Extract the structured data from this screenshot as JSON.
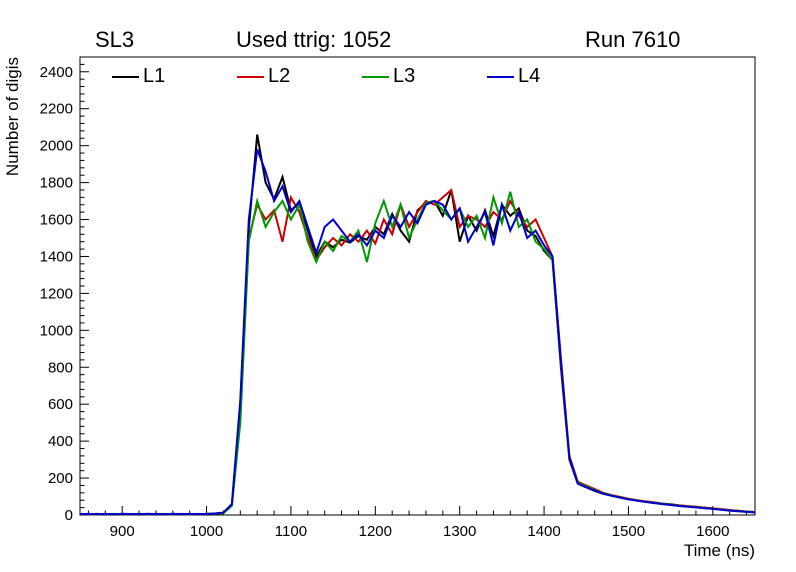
{
  "header": {
    "left": "SL3",
    "center": "Used ttrig: 1052",
    "right": "Run 7610"
  },
  "chart_data": {
    "type": "line",
    "title": "",
    "xlabel": "Time (ns)",
    "ylabel": "Number of digis",
    "xlim": [
      850,
      1650
    ],
    "ylim": [
      0,
      2480
    ],
    "xticks": [
      900,
      1000,
      1100,
      1200,
      1300,
      1400,
      1500,
      1600
    ],
    "yticks": [
      0,
      200,
      400,
      600,
      800,
      1000,
      1200,
      1400,
      1600,
      1800,
      2000,
      2200,
      2400
    ],
    "xmajor": 100,
    "xminor": 20,
    "ymajor": 200,
    "yminor": 40,
    "grid": false,
    "legend_position": "top-inside",
    "x": [
      850,
      860,
      870,
      880,
      890,
      900,
      910,
      920,
      930,
      940,
      950,
      960,
      970,
      980,
      990,
      1000,
      1010,
      1020,
      1030,
      1040,
      1050,
      1060,
      1070,
      1080,
      1090,
      1100,
      1110,
      1120,
      1130,
      1140,
      1150,
      1160,
      1170,
      1180,
      1190,
      1200,
      1210,
      1220,
      1230,
      1240,
      1250,
      1260,
      1270,
      1280,
      1290,
      1300,
      1310,
      1320,
      1330,
      1340,
      1350,
      1360,
      1370,
      1380,
      1390,
      1400,
      1410,
      1420,
      1430,
      1440,
      1450,
      1460,
      1470,
      1480,
      1490,
      1500,
      1510,
      1520,
      1530,
      1540,
      1550,
      1560,
      1570,
      1580,
      1590,
      1600,
      1610,
      1620,
      1630,
      1640,
      1650
    ],
    "series": [
      {
        "name": "L1",
        "label": "L1",
        "color": "#000000",
        "values": [
          5,
          4,
          6,
          5,
          5,
          6,
          5,
          4,
          6,
          5,
          5,
          6,
          5,
          5,
          4,
          6,
          8,
          12,
          60,
          600,
          1550,
          2060,
          1800,
          1710,
          1830,
          1650,
          1690,
          1540,
          1400,
          1480,
          1450,
          1490,
          1475,
          1510,
          1490,
          1560,
          1520,
          1630,
          1540,
          1480,
          1650,
          1690,
          1700,
          1620,
          1760,
          1480,
          1620,
          1540,
          1650,
          1510,
          1680,
          1620,
          1660,
          1540,
          1510,
          1430,
          1380,
          800,
          300,
          170,
          150,
          130,
          115,
          105,
          95,
          85,
          80,
          72,
          68,
          62,
          58,
          52,
          48,
          45,
          40,
          35,
          30,
          26,
          22,
          18,
          15
        ]
      },
      {
        "name": "L2",
        "label": "L2",
        "color": "#cc0000",
        "values": [
          5,
          5,
          4,
          6,
          5,
          5,
          4,
          6,
          5,
          6,
          5,
          4,
          6,
          5,
          5,
          6,
          7,
          11,
          55,
          550,
          1500,
          1680,
          1600,
          1650,
          1480,
          1720,
          1640,
          1500,
          1380,
          1450,
          1500,
          1460,
          1520,
          1480,
          1540,
          1470,
          1600,
          1520,
          1680,
          1560,
          1640,
          1700,
          1680,
          1720,
          1760,
          1560,
          1620,
          1600,
          1560,
          1640,
          1600,
          1700,
          1620,
          1560,
          1600,
          1500,
          1400,
          850,
          320,
          180,
          160,
          140,
          120,
          108,
          98,
          88,
          80,
          74,
          68,
          62,
          56,
          52,
          48,
          44,
          40,
          36,
          32,
          27,
          23,
          19,
          16
        ]
      },
      {
        "name": "L3",
        "label": "L3",
        "color": "#009900",
        "values": [
          6,
          5,
          5,
          4,
          6,
          5,
          5,
          6,
          4,
          5,
          6,
          5,
          5,
          4,
          6,
          5,
          7,
          10,
          50,
          500,
          1480,
          1700,
          1560,
          1640,
          1700,
          1600,
          1680,
          1480,
          1370,
          1480,
          1430,
          1510,
          1480,
          1540,
          1370,
          1580,
          1700,
          1560,
          1680,
          1500,
          1600,
          1690,
          1700,
          1650,
          1600,
          1660,
          1560,
          1620,
          1500,
          1720,
          1580,
          1750,
          1560,
          1600,
          1480,
          1440,
          1380,
          820,
          310,
          175,
          155,
          135,
          118,
          105,
          95,
          86,
          78,
          72,
          65,
          60,
          55,
          50,
          46,
          42,
          38,
          34,
          29,
          25,
          21,
          18,
          15
        ]
      },
      {
        "name": "L4",
        "label": "L4",
        "color": "#0000cc",
        "values": [
          5,
          6,
          5,
          5,
          4,
          6,
          5,
          5,
          6,
          5,
          4,
          6,
          5,
          6,
          5,
          5,
          8,
          13,
          58,
          620,
          1600,
          1980,
          1860,
          1700,
          1780,
          1640,
          1700,
          1560,
          1420,
          1560,
          1600,
          1540,
          1480,
          1520,
          1460,
          1540,
          1500,
          1620,
          1560,
          1640,
          1580,
          1680,
          1700,
          1680,
          1600,
          1660,
          1480,
          1560,
          1640,
          1460,
          1680,
          1540,
          1640,
          1500,
          1540,
          1460,
          1400,
          830,
          310,
          170,
          150,
          132,
          116,
          104,
          94,
          85,
          78,
          71,
          65,
          59,
          54,
          49,
          45,
          41,
          37,
          33,
          28,
          24,
          20,
          17,
          14
        ]
      }
    ]
  }
}
